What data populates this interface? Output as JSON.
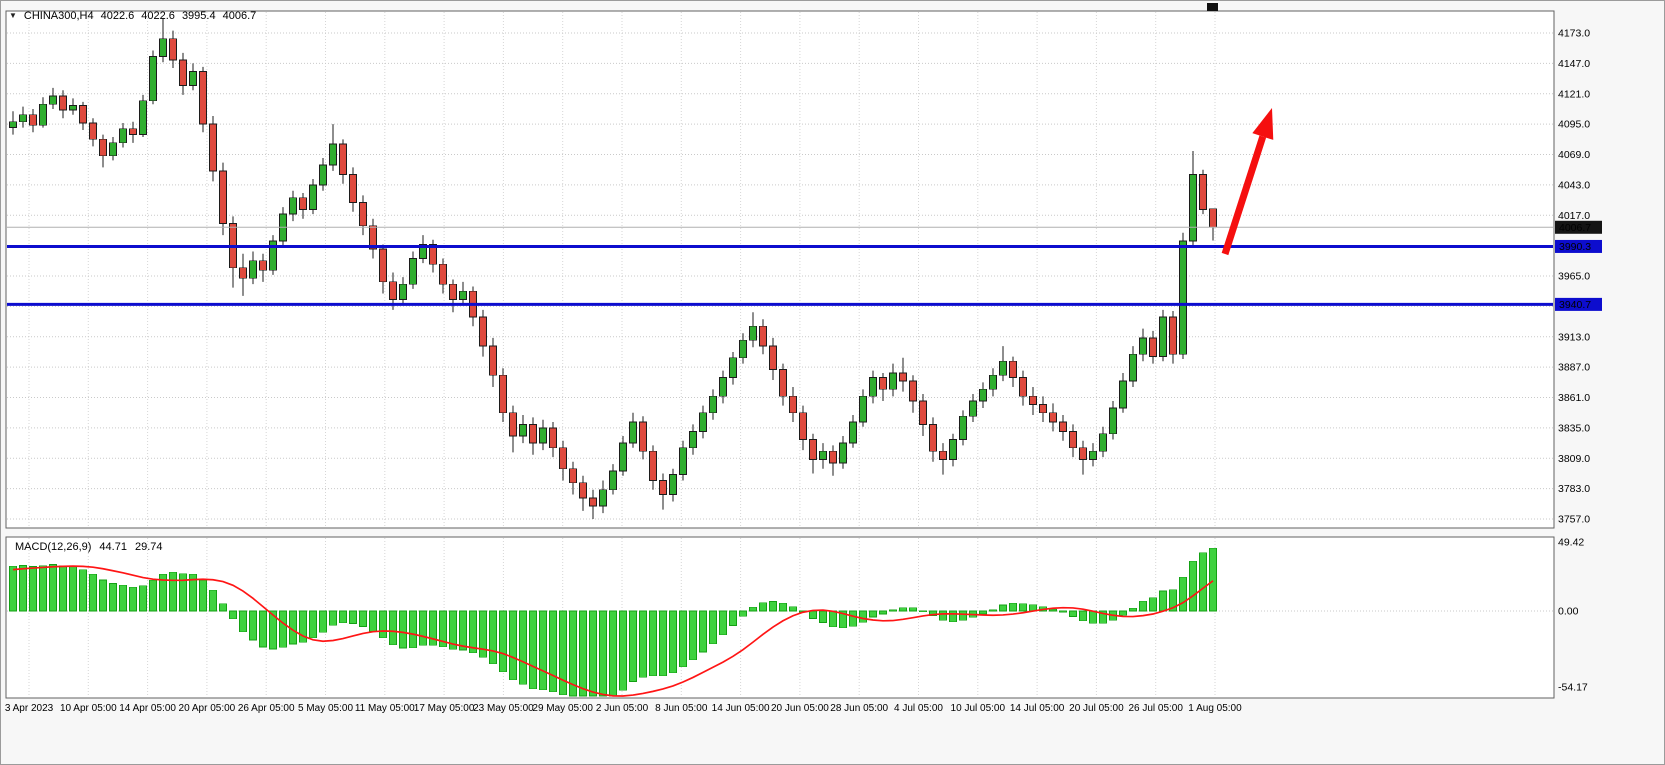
{
  "header": {
    "window_title": "CHINA300,H4"
  },
  "colors": {
    "bull": "#2fae2f",
    "bear": "#df4a3e",
    "candle_outline": "#1c1c1c",
    "macd_histogram": "#3fd23f",
    "macd_histogram_edge": "#14a014",
    "signal_line": "#ff1515",
    "hline": "#0d0dce",
    "current_price_line": "#b0b0b0",
    "current_price_box": "#141414",
    "arrow": "#f50f0f",
    "grid": "#c9c9c9",
    "panel_border": "#626262",
    "panel_bg": "#ffffff",
    "text": "#000000"
  },
  "chart_data": {
    "type": "candlestick",
    "title": "CHINA300,H4",
    "symbol": "CHINA300",
    "timeframe": "H4",
    "ohlc_display": {
      "open": "4022.6",
      "high": "4022.6",
      "low": "3995.4",
      "close": "4006.7"
    },
    "y_axis": {
      "ticks": [
        {
          "v": 4173,
          "label": "4173.0"
        },
        {
          "v": 4147,
          "label": "4147.0"
        },
        {
          "v": 4121,
          "label": "4121.0"
        },
        {
          "v": 4095,
          "label": "4095.0"
        },
        {
          "v": 4069,
          "label": "4069.0"
        },
        {
          "v": 4043,
          "label": "4043.0"
        },
        {
          "v": 4017,
          "label": "4017.0"
        },
        {
          "v": 3991,
          "label": "3991.0"
        },
        {
          "v": 3965,
          "label": "3965.0"
        },
        {
          "v": 3939,
          "label": "3939.0"
        },
        {
          "v": 3913,
          "label": "3913.0"
        },
        {
          "v": 3887,
          "label": "3887.0"
        },
        {
          "v": 3861,
          "label": "3861.0"
        },
        {
          "v": 3835,
          "label": "3835.0"
        },
        {
          "v": 3809,
          "label": "3809.0"
        },
        {
          "v": 3783,
          "label": "3783.0"
        },
        {
          "v": 3757,
          "label": "3757.0"
        }
      ]
    },
    "x_labels": [
      "3 Apr 2023",
      "10 Apr 05:00",
      "14 Apr 05:00",
      "20 Apr 05:00",
      "26 Apr 05:00",
      "5 May 05:00",
      "11 May 05:00",
      "17 May 05:00",
      "23 May 05:00",
      "29 May 05:00",
      "2 Jun 05:00",
      "8 Jun 05:00",
      "14 Jun 05:00",
      "20 Jun 05:00",
      "28 Jun 05:00",
      "4 Jul 05:00",
      "10 Jul 05:00",
      "14 Jul 05:00",
      "20 Jul 05:00",
      "26 Jul 05:00",
      "1 Aug 05:00"
    ],
    "horizontal_lines": [
      {
        "price": 3990.3,
        "label": "3990.3"
      },
      {
        "price": 3940.7,
        "label": "3940.7"
      }
    ],
    "current_price": {
      "value": 4006.7,
      "label": "4006.7"
    },
    "annotations": [
      {
        "type": "arrow",
        "from": [
          1224,
          253
        ],
        "to": [
          1271,
          107
        ]
      }
    ],
    "candles": [
      [
        4092,
        4106,
        4086,
        4097
      ],
      [
        4097,
        4110,
        4092,
        4103
      ],
      [
        4103,
        4108,
        4088,
        4094
      ],
      [
        4094,
        4118,
        4092,
        4112
      ],
      [
        4112,
        4126,
        4108,
        4119
      ],
      [
        4119,
        4124,
        4100,
        4107
      ],
      [
        4107,
        4117,
        4103,
        4111
      ],
      [
        4111,
        4114,
        4090,
        4096
      ],
      [
        4096,
        4100,
        4076,
        4082
      ],
      [
        4082,
        4086,
        4058,
        4068
      ],
      [
        4068,
        4084,
        4064,
        4079
      ],
      [
        4079,
        4096,
        4075,
        4091
      ],
      [
        4091,
        4097,
        4079,
        4086
      ],
      [
        4086,
        4120,
        4084,
        4115
      ],
      [
        4115,
        4158,
        4112,
        4153
      ],
      [
        4153,
        4186,
        4148,
        4168
      ],
      [
        4168,
        4175,
        4143,
        4150
      ],
      [
        4150,
        4156,
        4120,
        4128
      ],
      [
        4128,
        4147,
        4124,
        4140
      ],
      [
        4140,
        4144,
        4088,
        4095
      ],
      [
        4095,
        4102,
        4046,
        4055
      ],
      [
        4055,
        4062,
        4000,
        4010
      ],
      [
        4010,
        4016,
        3955,
        3972
      ],
      [
        3972,
        3984,
        3948,
        3963
      ],
      [
        3963,
        3986,
        3958,
        3978
      ],
      [
        3978,
        3984,
        3960,
        3970
      ],
      [
        3970,
        4000,
        3966,
        3995
      ],
      [
        3995,
        4024,
        3990,
        4018
      ],
      [
        4018,
        4038,
        4012,
        4032
      ],
      [
        4032,
        4036,
        4014,
        4022
      ],
      [
        4022,
        4048,
        4018,
        4043
      ],
      [
        4043,
        4066,
        4038,
        4060
      ],
      [
        4060,
        4095,
        4055,
        4078
      ],
      [
        4078,
        4082,
        4044,
        4052
      ],
      [
        4052,
        4058,
        4020,
        4028
      ],
      [
        4028,
        4034,
        4000,
        4008
      ],
      [
        4008,
        4014,
        3980,
        3988
      ],
      [
        3988,
        3992,
        3950,
        3960
      ],
      [
        3960,
        3968,
        3936,
        3945
      ],
      [
        3945,
        3964,
        3940,
        3958
      ],
      [
        3958,
        3986,
        3954,
        3980
      ],
      [
        3980,
        4000,
        3976,
        3992
      ],
      [
        3992,
        3996,
        3968,
        3975
      ],
      [
        3975,
        3980,
        3950,
        3958
      ],
      [
        3958,
        3962,
        3934,
        3945
      ],
      [
        3945,
        3960,
        3940,
        3952
      ],
      [
        3952,
        3956,
        3922,
        3930
      ],
      [
        3930,
        3936,
        3896,
        3905
      ],
      [
        3905,
        3912,
        3870,
        3880
      ],
      [
        3880,
        3886,
        3840,
        3848
      ],
      [
        3848,
        3854,
        3814,
        3828
      ],
      [
        3828,
        3846,
        3822,
        3838
      ],
      [
        3838,
        3844,
        3812,
        3822
      ],
      [
        3822,
        3842,
        3816,
        3835
      ],
      [
        3835,
        3840,
        3810,
        3818
      ],
      [
        3818,
        3824,
        3790,
        3800
      ],
      [
        3800,
        3806,
        3778,
        3788
      ],
      [
        3788,
        3794,
        3764,
        3775
      ],
      [
        3775,
        3782,
        3757,
        3768
      ],
      [
        3768,
        3790,
        3762,
        3782
      ],
      [
        3782,
        3804,
        3778,
        3798
      ],
      [
        3798,
        3828,
        3794,
        3822
      ],
      [
        3822,
        3848,
        3818,
        3840
      ],
      [
        3840,
        3845,
        3808,
        3815
      ],
      [
        3815,
        3820,
        3782,
        3790
      ],
      [
        3790,
        3796,
        3765,
        3778
      ],
      [
        3778,
        3800,
        3772,
        3795
      ],
      [
        3795,
        3824,
        3790,
        3818
      ],
      [
        3818,
        3838,
        3812,
        3832
      ],
      [
        3832,
        3854,
        3826,
        3848
      ],
      [
        3848,
        3868,
        3842,
        3862
      ],
      [
        3862,
        3884,
        3856,
        3878
      ],
      [
        3878,
        3900,
        3872,
        3895
      ],
      [
        3895,
        3916,
        3890,
        3910
      ],
      [
        3910,
        3934,
        3904,
        3922
      ],
      [
        3922,
        3928,
        3898,
        3905
      ],
      [
        3905,
        3912,
        3876,
        3885
      ],
      [
        3885,
        3890,
        3854,
        3862
      ],
      [
        3862,
        3870,
        3840,
        3848
      ],
      [
        3848,
        3854,
        3816,
        3825
      ],
      [
        3825,
        3830,
        3796,
        3808
      ],
      [
        3808,
        3822,
        3800,
        3815
      ],
      [
        3815,
        3820,
        3794,
        3805
      ],
      [
        3805,
        3828,
        3800,
        3822
      ],
      [
        3822,
        3846,
        3818,
        3840
      ],
      [
        3840,
        3868,
        3836,
        3862
      ],
      [
        3862,
        3884,
        3856,
        3878
      ],
      [
        3878,
        3882,
        3858,
        3868
      ],
      [
        3868,
        3890,
        3862,
        3882
      ],
      [
        3882,
        3895,
        3866,
        3875
      ],
      [
        3875,
        3880,
        3848,
        3858
      ],
      [
        3858,
        3864,
        3828,
        3838
      ],
      [
        3838,
        3844,
        3806,
        3815
      ],
      [
        3815,
        3822,
        3795,
        3808
      ],
      [
        3808,
        3830,
        3802,
        3825
      ],
      [
        3825,
        3850,
        3820,
        3845
      ],
      [
        3845,
        3864,
        3840,
        3858
      ],
      [
        3858,
        3874,
        3852,
        3868
      ],
      [
        3868,
        3886,
        3862,
        3880
      ],
      [
        3880,
        3905,
        3875,
        3892
      ],
      [
        3892,
        3896,
        3870,
        3878
      ],
      [
        3878,
        3884,
        3854,
        3862
      ],
      [
        3862,
        3870,
        3846,
        3855
      ],
      [
        3855,
        3862,
        3840,
        3848
      ],
      [
        3848,
        3856,
        3832,
        3840
      ],
      [
        3840,
        3846,
        3824,
        3832
      ],
      [
        3832,
        3838,
        3810,
        3818
      ],
      [
        3818,
        3824,
        3795,
        3808
      ],
      [
        3808,
        3822,
        3802,
        3815
      ],
      [
        3815,
        3836,
        3810,
        3830
      ],
      [
        3830,
        3858,
        3825,
        3852
      ],
      [
        3852,
        3882,
        3848,
        3875
      ],
      [
        3875,
        3905,
        3870,
        3898
      ],
      [
        3898,
        3920,
        3892,
        3912
      ],
      [
        3912,
        3918,
        3890,
        3896
      ],
      [
        3896,
        3936,
        3892,
        3930
      ],
      [
        3930,
        3935,
        3890,
        3898
      ],
      [
        3898,
        4002,
        3894,
        3995
      ],
      [
        3995,
        4072,
        3990,
        4052
      ],
      [
        4052,
        4056,
        4018,
        4022
      ],
      [
        4022.6,
        4022.6,
        3995.4,
        4006.7
      ]
    ],
    "macd_panel": {
      "title": "MACD(12,26,9)",
      "macd_value": "44.71",
      "signal_value": "29.74",
      "params": {
        "fast": 12,
        "slow": 26,
        "signal": 9
      },
      "scale": [
        {
          "v": 49.42,
          "label": "49.42"
        },
        {
          "v": 0,
          "label": "0.00"
        },
        {
          "v": -54.17,
          "label": "-54.17"
        }
      ],
      "warmup": {
        "start": 3945,
        "end": 4092,
        "bars": 30
      }
    }
  }
}
